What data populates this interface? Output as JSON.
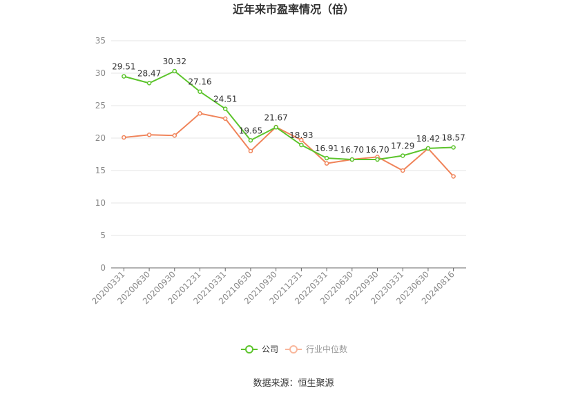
{
  "chart_data": {
    "type": "line",
    "title": "近年来市盈率情况（倍）",
    "categories": [
      "20200331",
      "20200630",
      "20200930",
      "20201231",
      "20210331",
      "20210630",
      "20210930",
      "20211231",
      "20220331",
      "20220630",
      "20220930",
      "20230331",
      "20230630",
      "20240816"
    ],
    "series": [
      {
        "name": "公司",
        "color": "#5cc42c",
        "values": [
          29.51,
          28.47,
          30.32,
          27.16,
          24.51,
          19.65,
          21.67,
          18.93,
          16.91,
          16.7,
          16.7,
          17.29,
          18.42,
          18.57
        ],
        "labels": [
          "29.51",
          "28.47",
          "30.32",
          "27.16",
          "24.51",
          "19.65",
          "21.67",
          "18.93",
          "16.91",
          "16.70",
          "16.70",
          "17.29",
          "18.42",
          "18.57"
        ]
      },
      {
        "name": "行业中位数",
        "color": "#f0845a",
        "values": [
          20.1,
          20.5,
          20.4,
          23.8,
          23.0,
          18.0,
          21.7,
          19.7,
          16.1,
          16.7,
          17.1,
          15.0,
          18.4,
          14.1
        ]
      }
    ],
    "yticks": [
      "0",
      "5",
      "10",
      "15",
      "20",
      "25",
      "30",
      "35"
    ],
    "ylim": [
      0,
      35
    ],
    "grid": true,
    "legend": "bottom-center",
    "source": "数据来源：恒生聚源"
  }
}
